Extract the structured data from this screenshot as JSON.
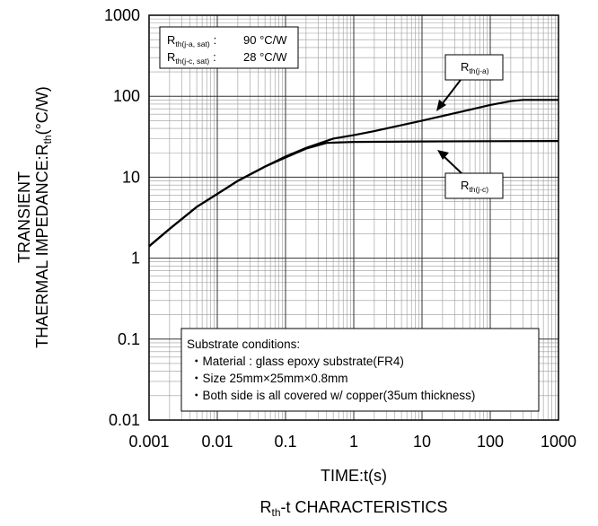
{
  "chart_data": {
    "type": "line",
    "x_scale": "log",
    "y_scale": "log",
    "xlim": [
      0.001,
      1000
    ],
    "ylim": [
      0.01,
      1000
    ],
    "grid": true,
    "xlabel": "TIME:t(s)",
    "ylabel": {
      "line1": "TRANSIENT",
      "line2_main": "THAERMAL IMPEDANCE:R",
      "line2_sub": "th",
      "line2_tail": "(°C/W)"
    },
    "title": {
      "main": "R",
      "sub": "th",
      "tail": "-t CHARACTERISTICS"
    },
    "x_ticks": [
      {
        "value": 0.001,
        "label": "0.001"
      },
      {
        "value": 0.01,
        "label": "0.01"
      },
      {
        "value": 0.1,
        "label": "0.1"
      },
      {
        "value": 1,
        "label": "1"
      },
      {
        "value": 10,
        "label": "10"
      },
      {
        "value": 100,
        "label": "100"
      },
      {
        "value": 1000,
        "label": "1000"
      }
    ],
    "y_ticks": [
      {
        "value": 0.01,
        "label": "0.01"
      },
      {
        "value": 0.1,
        "label": "0.1"
      },
      {
        "value": 1,
        "label": "1"
      },
      {
        "value": 10,
        "label": "10"
      },
      {
        "value": 100,
        "label": "100"
      },
      {
        "value": 1000,
        "label": "1000"
      }
    ],
    "series": [
      {
        "name": "Rth(j-a)",
        "label_main": "R",
        "label_sub": "th(j-a)",
        "color": "#000000",
        "points": [
          [
            0.001,
            1.4
          ],
          [
            0.002,
            2.3
          ],
          [
            0.005,
            4.3
          ],
          [
            0.01,
            6.2
          ],
          [
            0.02,
            9.0
          ],
          [
            0.05,
            13.5
          ],
          [
            0.1,
            18.0
          ],
          [
            0.2,
            23.0
          ],
          [
            0.5,
            30.0
          ],
          [
            1,
            33.0
          ],
          [
            2,
            37.0
          ],
          [
            5,
            44.0
          ],
          [
            10,
            50.0
          ],
          [
            20,
            57.0
          ],
          [
            50,
            68.0
          ],
          [
            100,
            78.0
          ],
          [
            200,
            87.0
          ],
          [
            300,
            90.0
          ],
          [
            500,
            90.0
          ],
          [
            1000,
            90.0
          ]
        ]
      },
      {
        "name": "Rth(j-c)",
        "label_main": "R",
        "label_sub": "th(j-c)",
        "color": "#000000",
        "points": [
          [
            0.001,
            1.4
          ],
          [
            0.002,
            2.3
          ],
          [
            0.005,
            4.3
          ],
          [
            0.01,
            6.2
          ],
          [
            0.02,
            9.0
          ],
          [
            0.05,
            13.5
          ],
          [
            0.1,
            17.5
          ],
          [
            0.2,
            22.5
          ],
          [
            0.4,
            26.5
          ],
          [
            1,
            27.3
          ],
          [
            10,
            27.6
          ],
          [
            100,
            27.8
          ],
          [
            1000,
            28.0
          ]
        ]
      }
    ],
    "annotations": {
      "rth_box": [
        {
          "main": "R",
          "sub": "th(j-a, sat)",
          "sep": ":",
          "value": "90 °C/W"
        },
        {
          "main": "R",
          "sub": "th(j-c, sat)",
          "sep": ":",
          "value": "28 °C/W"
        }
      ],
      "substrate": {
        "heading": "Substrate conditions:",
        "items": [
          "・Material : glass epoxy substrate(FR4)",
          "・Size 25mm×25mm×0.8mm",
          "・Both side is all covered w/ copper(35um thickness)"
        ]
      }
    }
  }
}
